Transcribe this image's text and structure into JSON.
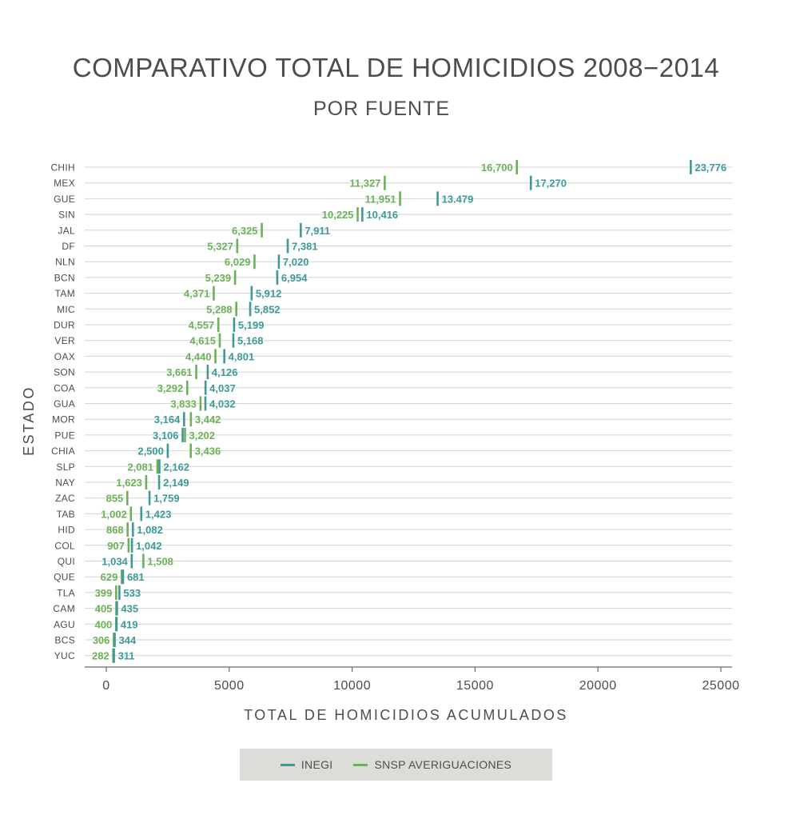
{
  "colors": {
    "inegi": "#3d9a99",
    "snsp": "#6cb157",
    "axis": "#6b6b6b",
    "grid": "#d4d4d4",
    "text": "#4d4d4d"
  },
  "chart_data": {
    "type": "dot",
    "title": "COMPARATIVO TOTAL DE HOMICIDIOS 2008−2014",
    "subtitle": "POR FUENTE",
    "xlabel": "TOTAL DE HOMICIDIOS ACUMULADOS",
    "ylabel": "ESTADO",
    "xlim": [
      -800,
      25400
    ],
    "xticks": [
      0,
      5000,
      10000,
      15000,
      20000,
      25000
    ],
    "xtick_labels": [
      "0",
      "5000",
      "10000",
      "15000",
      "20000",
      "25000"
    ],
    "categories": [
      "CHIH",
      "MEX",
      "GUE",
      "SIN",
      "JAL",
      "DF",
      "NLN",
      "BCN",
      "TAM",
      "MIC",
      "DUR",
      "VER",
      "OAX",
      "SON",
      "COA",
      "GUA",
      "MOR",
      "PUE",
      "CHIA",
      "SLP",
      "NAY",
      "ZAC",
      "TAB",
      "HID",
      "COL",
      "QUI",
      "QUE",
      "TLA",
      "CAM",
      "AGU",
      "BCS",
      "YUC"
    ],
    "series": [
      {
        "name": "INEGI",
        "color_key": "inegi",
        "values": [
          23776,
          17270,
          13479,
          10416,
          7911,
          7381,
          7020,
          6954,
          5912,
          5852,
          5199,
          5168,
          4801,
          4126,
          4037,
          4032,
          3164,
          3106,
          2500,
          2162,
          2149,
          1759,
          1423,
          1082,
          1042,
          1034,
          681,
          533,
          435,
          419,
          344,
          311
        ],
        "labels": [
          "23,776",
          "17,270",
          "13.479",
          "10,416",
          "7,911",
          "7,381",
          "7,020",
          "6,954",
          "5,912",
          "5,852",
          "5,199",
          "5,168",
          "4,801",
          "4,126",
          "4,037",
          "4,032",
          "3,164",
          "3,106",
          "2,500",
          "2,162",
          "2,149",
          "1,759",
          "1,423",
          "1,082",
          "1,042",
          "1,034",
          "681",
          "533",
          "435",
          "419",
          "344",
          "311"
        ]
      },
      {
        "name": "SNSP AVERIGUACIONES",
        "color_key": "snsp",
        "values": [
          16700,
          11327,
          11951,
          10225,
          6325,
          5327,
          6029,
          5239,
          4371,
          5288,
          4557,
          4615,
          4440,
          3661,
          3292,
          3833,
          3442,
          3202,
          3436,
          2081,
          1623,
          855,
          1002,
          868,
          907,
          1508,
          629,
          399,
          405,
          400,
          306,
          282
        ],
        "labels": [
          "16,700",
          "11,327",
          "11,951",
          "10,225",
          "6,325",
          "5,327",
          "6,029",
          "5,239",
          "4,371",
          "5,288",
          "4,557",
          "4,615",
          "4,440",
          "3,661",
          "3,292",
          "3,833",
          "3,442",
          "3,202",
          "3,436",
          "2,081",
          "1,623",
          "855",
          "1,002",
          "868",
          "907",
          "1,508",
          "629",
          "399",
          "405",
          "400",
          "306",
          "282"
        ]
      }
    ],
    "legend": {
      "position": "bottom-center",
      "items": [
        "INEGI",
        "SNSP AVERIGUACIONES"
      ]
    },
    "grid": true
  }
}
